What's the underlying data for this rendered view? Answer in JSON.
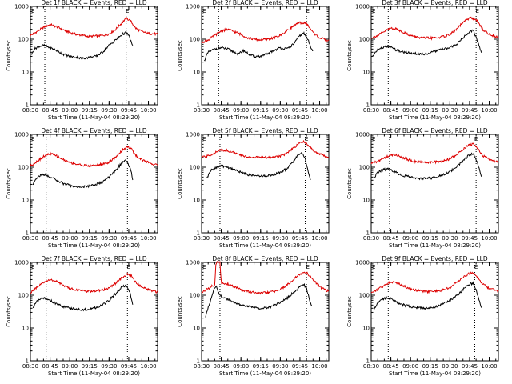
{
  "figure": {
    "colors": {
      "events": "#000000",
      "lld": "#dd0000",
      "axes": "#000000"
    },
    "common": {
      "xlabel": "Start Time (11-May-04 08:29:20)",
      "ylabel": "Counts/sec",
      "x_ticks": [
        "08:30",
        "08:45",
        "09:00",
        "09:15",
        "09:30",
        "09:45",
        "10:00"
      ],
      "x_tick_minutes": [
        30,
        45,
        60,
        75,
        90,
        105,
        120
      ],
      "y_ticks": [
        "1",
        "10",
        "100",
        "1000"
      ],
      "y_tick_values": [
        1,
        10,
        100,
        1000
      ],
      "marker_label": "E"
    }
  },
  "chart_data": [
    {
      "type": "line",
      "title": "Det 1f BLACK = Events, RED = LLD",
      "xlim": [
        30,
        127
      ],
      "ylim": [
        1,
        1000
      ],
      "yscale": "log",
      "vlines": [
        41,
        103
      ],
      "marker_x": [
        30,
        102
      ],
      "series": [
        {
          "name": "LLD",
          "color": "#dd0000",
          "x": [
            30,
            35,
            40,
            45,
            50,
            55,
            60,
            65,
            70,
            75,
            80,
            85,
            90,
            95,
            100,
            103,
            106,
            110,
            115,
            120,
            125,
            127
          ],
          "values": [
            130,
            170,
            230,
            280,
            240,
            195,
            160,
            140,
            130,
            120,
            125,
            130,
            145,
            200,
            320,
            430,
            380,
            220,
            170,
            150,
            145,
            140
          ]
        },
        {
          "name": "Events",
          "color": "#000000",
          "x": [
            31,
            33,
            36,
            40,
            45,
            50,
            55,
            60,
            65,
            70,
            75,
            80,
            85,
            90,
            95,
            100,
            103,
            105,
            107,
            108
          ],
          "values": [
            35,
            50,
            60,
            65,
            55,
            45,
            35,
            30,
            28,
            26,
            28,
            30,
            40,
            65,
            95,
            140,
            160,
            130,
            80,
            60
          ]
        }
      ]
    },
    {
      "type": "line",
      "title": "Det 2f BLACK = Events, RED = LLD",
      "xlim": [
        30,
        127
      ],
      "ylim": [
        1,
        1000
      ],
      "yscale": "log",
      "vlines": [
        43,
        110
      ],
      "marker_x": [
        30,
        109
      ],
      "series": [
        {
          "name": "LLD",
          "color": "#dd0000",
          "x": [
            30,
            35,
            40,
            45,
            50,
            55,
            60,
            65,
            70,
            75,
            80,
            85,
            90,
            95,
            100,
            105,
            110,
            115,
            120,
            125,
            127
          ],
          "values": [
            80,
            95,
            130,
            180,
            200,
            170,
            140,
            110,
            100,
            95,
            100,
            110,
            130,
            180,
            250,
            320,
            300,
            160,
            110,
            95,
            90
          ]
        },
        {
          "name": "Events",
          "color": "#000000",
          "x": [
            32,
            35,
            40,
            45,
            50,
            55,
            58,
            62,
            66,
            70,
            75,
            80,
            85,
            90,
            95,
            100,
            105,
            108,
            111,
            113,
            115
          ],
          "values": [
            22,
            40,
            50,
            55,
            50,
            40,
            35,
            45,
            35,
            30,
            30,
            35,
            45,
            55,
            50,
            70,
            130,
            150,
            100,
            60,
            45
          ]
        }
      ]
    },
    {
      "type": "line",
      "title": "Det 3f BLACK = Events, RED = LLD",
      "xlim": [
        30,
        127
      ],
      "ylim": [
        1,
        1000
      ],
      "yscale": "log",
      "vlines": [
        43,
        110
      ],
      "marker_x": [
        30,
        109
      ],
      "series": [
        {
          "name": "LLD",
          "color": "#dd0000",
          "x": [
            30,
            35,
            40,
            45,
            50,
            55,
            60,
            65,
            70,
            75,
            80,
            85,
            90,
            95,
            100,
            105,
            110,
            115,
            120,
            125,
            127
          ],
          "values": [
            110,
            130,
            170,
            220,
            200,
            160,
            130,
            115,
            110,
            108,
            110,
            120,
            140,
            200,
            320,
            450,
            400,
            200,
            140,
            120,
            115
          ]
        },
        {
          "name": "Events",
          "color": "#000000",
          "x": [
            31,
            34,
            38,
            42,
            46,
            50,
            55,
            60,
            65,
            70,
            75,
            80,
            85,
            90,
            95,
            100,
            105,
            108,
            110,
            112,
            114
          ],
          "values": [
            30,
            45,
            55,
            60,
            55,
            45,
            40,
            38,
            36,
            35,
            38,
            45,
            50,
            55,
            70,
            110,
            170,
            190,
            110,
            70,
            40
          ]
        }
      ]
    },
    {
      "type": "line",
      "title": "Det 4f BLACK = Events, RED = LLD",
      "xlim": [
        30,
        127
      ],
      "ylim": [
        1,
        1000
      ],
      "yscale": "log",
      "vlines": [
        42,
        104
      ],
      "marker_x": [
        30,
        103
      ],
      "series": [
        {
          "name": "LLD",
          "color": "#dd0000",
          "x": [
            30,
            35,
            40,
            45,
            50,
            55,
            60,
            65,
            70,
            75,
            80,
            85,
            90,
            95,
            100,
            104,
            107,
            110,
            115,
            120,
            125,
            127
          ],
          "values": [
            110,
            150,
            210,
            260,
            220,
            170,
            140,
            125,
            115,
            110,
            115,
            125,
            140,
            200,
            330,
            430,
            360,
            230,
            170,
            140,
            120,
            115
          ]
        },
        {
          "name": "Events",
          "color": "#000000",
          "x": [
            32,
            34,
            37,
            41,
            45,
            50,
            55,
            60,
            65,
            70,
            75,
            80,
            85,
            90,
            95,
            100,
            103,
            105,
            107,
            108
          ],
          "values": [
            30,
            45,
            55,
            60,
            50,
            40,
            32,
            28,
            25,
            25,
            27,
            30,
            35,
            50,
            80,
            140,
            160,
            120,
            70,
            40
          ]
        }
      ]
    },
    {
      "type": "line",
      "title": "Det 5f BLACK = Events, RED = LLD",
      "xlim": [
        30,
        127
      ],
      "ylim": [
        1,
        1000
      ],
      "yscale": "log",
      "vlines": [
        44,
        109
      ],
      "marker_x": [
        30,
        108
      ],
      "series": [
        {
          "name": "LLD",
          "color": "#dd0000",
          "x": [
            30,
            35,
            40,
            45,
            50,
            55,
            60,
            65,
            70,
            75,
            80,
            85,
            90,
            95,
            100,
            105,
            108,
            111,
            115,
            120,
            125,
            127
          ],
          "values": [
            200,
            220,
            270,
            340,
            320,
            270,
            230,
            205,
            200,
            200,
            200,
            205,
            220,
            260,
            380,
            550,
            600,
            480,
            330,
            250,
            215,
            205
          ]
        },
        {
          "name": "Events",
          "color": "#000000",
          "x": [
            34,
            37,
            40,
            45,
            50,
            55,
            60,
            65,
            70,
            75,
            80,
            85,
            90,
            95,
            100,
            104,
            107,
            109,
            111,
            113
          ],
          "values": [
            45,
            80,
            95,
            110,
            100,
            85,
            70,
            60,
            55,
            55,
            55,
            60,
            70,
            90,
            150,
            250,
            270,
            180,
            80,
            40
          ]
        }
      ]
    },
    {
      "type": "line",
      "title": "Det 6f BLACK = Events, RED = LLD",
      "xlim": [
        30,
        127
      ],
      "ylim": [
        1,
        1000
      ],
      "yscale": "log",
      "vlines": [
        44,
        110
      ],
      "marker_x": [
        30,
        108
      ],
      "series": [
        {
          "name": "LLD",
          "color": "#dd0000",
          "x": [
            30,
            35,
            40,
            45,
            50,
            55,
            60,
            65,
            70,
            75,
            80,
            85,
            90,
            95,
            100,
            105,
            108,
            111,
            115,
            120,
            125,
            127
          ],
          "values": [
            130,
            150,
            190,
            240,
            230,
            190,
            160,
            145,
            140,
            140,
            145,
            155,
            180,
            240,
            350,
            480,
            500,
            380,
            230,
            170,
            150,
            145
          ]
        },
        {
          "name": "Events",
          "color": "#000000",
          "x": [
            32,
            35,
            38,
            42,
            46,
            50,
            55,
            60,
            65,
            70,
            75,
            80,
            85,
            90,
            95,
            100,
            105,
            108,
            110,
            112,
            114
          ],
          "values": [
            45,
            70,
            80,
            90,
            80,
            65,
            55,
            50,
            45,
            45,
            47,
            50,
            60,
            75,
            100,
            160,
            240,
            250,
            170,
            100,
            50
          ]
        }
      ]
    },
    {
      "type": "line",
      "title": "Det 7f BLACK = Events, RED = LLD",
      "xlim": [
        30,
        127
      ],
      "ylim": [
        1,
        1000
      ],
      "yscale": "log",
      "vlines": [
        42,
        104
      ],
      "marker_x": [
        30,
        103
      ],
      "series": [
        {
          "name": "LLD",
          "color": "#dd0000",
          "x": [
            30,
            35,
            40,
            45,
            50,
            55,
            60,
            65,
            70,
            75,
            80,
            85,
            90,
            95,
            100,
            104,
            107,
            110,
            115,
            120,
            125,
            127
          ],
          "values": [
            120,
            170,
            240,
            300,
            260,
            200,
            165,
            145,
            135,
            130,
            135,
            145,
            165,
            230,
            350,
            450,
            390,
            250,
            180,
            150,
            130,
            125
          ]
        },
        {
          "name": "Events",
          "color": "#000000",
          "x": [
            32,
            34,
            37,
            41,
            45,
            50,
            55,
            60,
            65,
            70,
            75,
            80,
            85,
            90,
            95,
            100,
            103,
            105,
            107,
            108
          ],
          "values": [
            40,
            60,
            75,
            80,
            70,
            55,
            45,
            40,
            38,
            36,
            38,
            42,
            50,
            70,
            110,
            180,
            200,
            150,
            80,
            50
          ]
        }
      ]
    },
    {
      "type": "line",
      "title": "Det 8f BLACK = Events, RED = LLD",
      "xlim": [
        30,
        127
      ],
      "ylim": [
        1,
        1000
      ],
      "yscale": "log",
      "vlines": [
        44,
        110
      ],
      "marker_x": [
        30,
        109
      ],
      "series": [
        {
          "name": "LLD",
          "color": "#dd0000",
          "x": [
            30,
            34,
            38,
            40,
            41,
            42,
            43,
            44,
            45,
            50,
            55,
            60,
            65,
            70,
            75,
            80,
            85,
            90,
            95,
            100,
            105,
            110,
            115,
            120,
            125,
            127
          ],
          "values": [
            120,
            150,
            190,
            210,
            1000,
            1000,
            1000,
            1000,
            230,
            220,
            180,
            150,
            130,
            120,
            115,
            120,
            130,
            150,
            200,
            300,
            440,
            500,
            300,
            180,
            140,
            130
          ]
        },
        {
          "name": "Events",
          "color": "#000000",
          "x": [
            33,
            35,
            37,
            39,
            41,
            43,
            45,
            48,
            52,
            56,
            60,
            65,
            70,
            75,
            80,
            85,
            90,
            95,
            100,
            105,
            108,
            110,
            112,
            114
          ],
          "values": [
            20,
            45,
            70,
            140,
            200,
            120,
            90,
            80,
            70,
            55,
            50,
            45,
            42,
            40,
            42,
            48,
            60,
            80,
            120,
            180,
            210,
            160,
            80,
            45
          ]
        }
      ]
    },
    {
      "type": "line",
      "title": "Det 9f BLACK = Events, RED = LLD",
      "xlim": [
        30,
        127
      ],
      "ylim": [
        1,
        1000
      ],
      "yscale": "log",
      "vlines": [
        43,
        109
      ],
      "marker_x": [
        30,
        108
      ],
      "series": [
        {
          "name": "LLD",
          "color": "#dd0000",
          "x": [
            30,
            35,
            40,
            45,
            50,
            55,
            60,
            65,
            70,
            75,
            80,
            85,
            90,
            95,
            100,
            105,
            108,
            111,
            115,
            120,
            125,
            127
          ],
          "values": [
            120,
            150,
            200,
            260,
            240,
            190,
            155,
            140,
            130,
            128,
            132,
            145,
            170,
            240,
            350,
            470,
            480,
            360,
            220,
            160,
            140,
            130
          ]
        },
        {
          "name": "Events",
          "color": "#000000",
          "x": [
            32,
            35,
            38,
            42,
            46,
            50,
            55,
            60,
            65,
            70,
            75,
            80,
            85,
            90,
            95,
            100,
            105,
            108,
            110,
            112,
            114
          ],
          "values": [
            38,
            60,
            75,
            85,
            75,
            60,
            50,
            45,
            42,
            40,
            42,
            45,
            55,
            70,
            95,
            150,
            220,
            230,
            150,
            80,
            40
          ]
        }
      ]
    }
  ]
}
